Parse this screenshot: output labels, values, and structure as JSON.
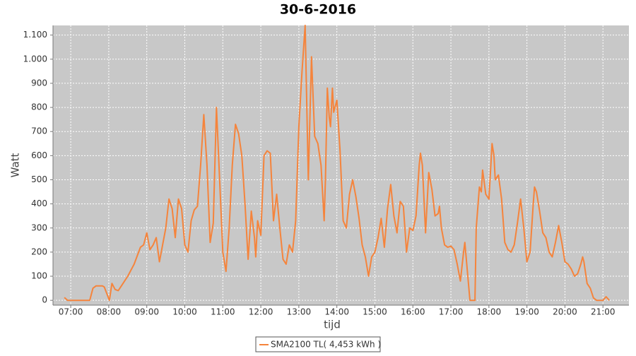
{
  "chart_data": {
    "type": "line",
    "title": "30-6-2016",
    "xlabel": "tijd",
    "ylabel": "Watt",
    "xlim": [
      "06:32",
      "21:41"
    ],
    "xticks": [
      "07:00",
      "08:00",
      "09:00",
      "10:00",
      "11:00",
      "12:00",
      "13:00",
      "14:00",
      "15:00",
      "16:00",
      "17:00",
      "18:00",
      "19:00",
      "20:00",
      "21:00"
    ],
    "ylim": [
      -20,
      1140
    ],
    "yticks": [
      0,
      100,
      200,
      300,
      400,
      500,
      600,
      700,
      800,
      900,
      {
        "value": 1000,
        "label": "1.000"
      },
      {
        "value": 1100,
        "label": "1.100"
      }
    ],
    "grid": true,
    "legend": "bottom",
    "x": [
      "06:50",
      "06:55",
      "07:00",
      "07:10",
      "07:20",
      "07:30",
      "07:35",
      "07:40",
      "07:50",
      "07:53",
      "08:01",
      "08:05",
      "08:10",
      "08:15",
      "08:20",
      "08:30",
      "08:40",
      "08:50",
      "08:55",
      "09:00",
      "09:05",
      "09:10",
      "09:15",
      "09:20",
      "09:30",
      "09:35",
      "09:40",
      "09:45",
      "09:50",
      "09:55",
      "10:00",
      "10:05",
      "10:10",
      "10:15",
      "10:20",
      "10:25",
      "10:30",
      "10:35",
      "10:40",
      "10:45",
      "10:50",
      "10:55",
      "11:00",
      "11:05",
      "11:10",
      "11:15",
      "11:20",
      "11:25",
      "11:30",
      "11:35",
      "11:40",
      "11:45",
      "11:50",
      "11:52",
      "11:55",
      "12:00",
      "12:05",
      "12:10",
      "12:15",
      "12:20",
      "12:25",
      "12:30",
      "12:35",
      "12:40",
      "12:45",
      "12:50",
      "12:55",
      "13:00",
      "13:05",
      "13:10",
      "13:15",
      "13:20",
      "13:25",
      "13:30",
      "13:35",
      "13:40",
      "13:42",
      "13:45",
      "13:48",
      "13:50",
      "13:53",
      "13:55",
      "14:00",
      "14:05",
      "14:10",
      "14:15",
      "14:20",
      "14:25",
      "14:30",
      "14:35",
      "14:40",
      "14:45",
      "14:50",
      "14:55",
      "15:00",
      "15:05",
      "15:10",
      "15:15",
      "15:20",
      "15:25",
      "15:30",
      "15:35",
      "15:40",
      "15:45",
      "15:50",
      "15:55",
      "16:00",
      "16:05",
      "16:10",
      "16:12",
      "16:15",
      "16:20",
      "16:25",
      "16:30",
      "16:35",
      "16:40",
      "16:42",
      "16:45",
      "16:50",
      "16:55",
      "17:00",
      "17:05",
      "17:10",
      "17:15",
      "17:20",
      "17:22",
      "17:25",
      "17:30",
      "17:35",
      "17:38",
      "17:40",
      "17:45",
      "17:48",
      "17:50",
      "17:55",
      "18:00",
      "18:05",
      "18:08",
      "18:10",
      "18:15",
      "18:20",
      "18:25",
      "18:30",
      "18:35",
      "18:40",
      "18:45",
      "18:50",
      "18:55",
      "19:00",
      "19:05",
      "19:10",
      "19:12",
      "19:15",
      "19:20",
      "19:25",
      "19:30",
      "19:35",
      "19:40",
      "19:45",
      "19:50",
      "19:55",
      "20:00",
      "20:05",
      "20:10",
      "20:15",
      "20:20",
      "20:25",
      "20:28",
      "20:30",
      "20:35",
      "20:40",
      "20:45",
      "20:50",
      "20:55",
      "21:00",
      "21:05",
      "21:10"
    ],
    "series": [
      {
        "name": "SMA2100 TL( 4,453 kWh )",
        "color": "#f5843c",
        "values": [
          12,
          0,
          0,
          0,
          0,
          0,
          50,
          60,
          60,
          55,
          0,
          70,
          45,
          40,
          60,
          100,
          150,
          220,
          230,
          280,
          210,
          230,
          260,
          160,
          300,
          420,
          380,
          260,
          420,
          380,
          230,
          200,
          330,
          375,
          390,
          560,
          770,
          560,
          240,
          320,
          800,
          500,
          200,
          120,
          300,
          560,
          730,
          690,
          600,
          400,
          170,
          370,
          260,
          180,
          330,
          270,
          600,
          620,
          610,
          330,
          440,
          300,
          170,
          150,
          230,
          200,
          330,
          720,
          950,
          1140,
          500,
          1010,
          680,
          650,
          560,
          330,
          500,
          880,
          760,
          720,
          880,
          780,
          830,
          620,
          330,
          300,
          440,
          500,
          430,
          340,
          230,
          180,
          100,
          180,
          200,
          260,
          340,
          220,
          380,
          480,
          350,
          280,
          410,
          390,
          200,
          300,
          290,
          350,
          560,
          610,
          560,
          280,
          530,
          460,
          350,
          360,
          390,
          300,
          230,
          220,
          225,
          210,
          150,
          80,
          200,
          240,
          150,
          0,
          0,
          0,
          300,
          470,
          450,
          540,
          440,
          420,
          650,
          600,
          500,
          520,
          420,
          240,
          210,
          200,
          230,
          320,
          420,
          300,
          160,
          200,
          400,
          470,
          450,
          370,
          280,
          260,
          200,
          180,
          240,
          310,
          240,
          160,
          150,
          130,
          100,
          110,
          150,
          180,
          160,
          70,
          50,
          10,
          0,
          0,
          0,
          15,
          0
        ]
      }
    ]
  }
}
